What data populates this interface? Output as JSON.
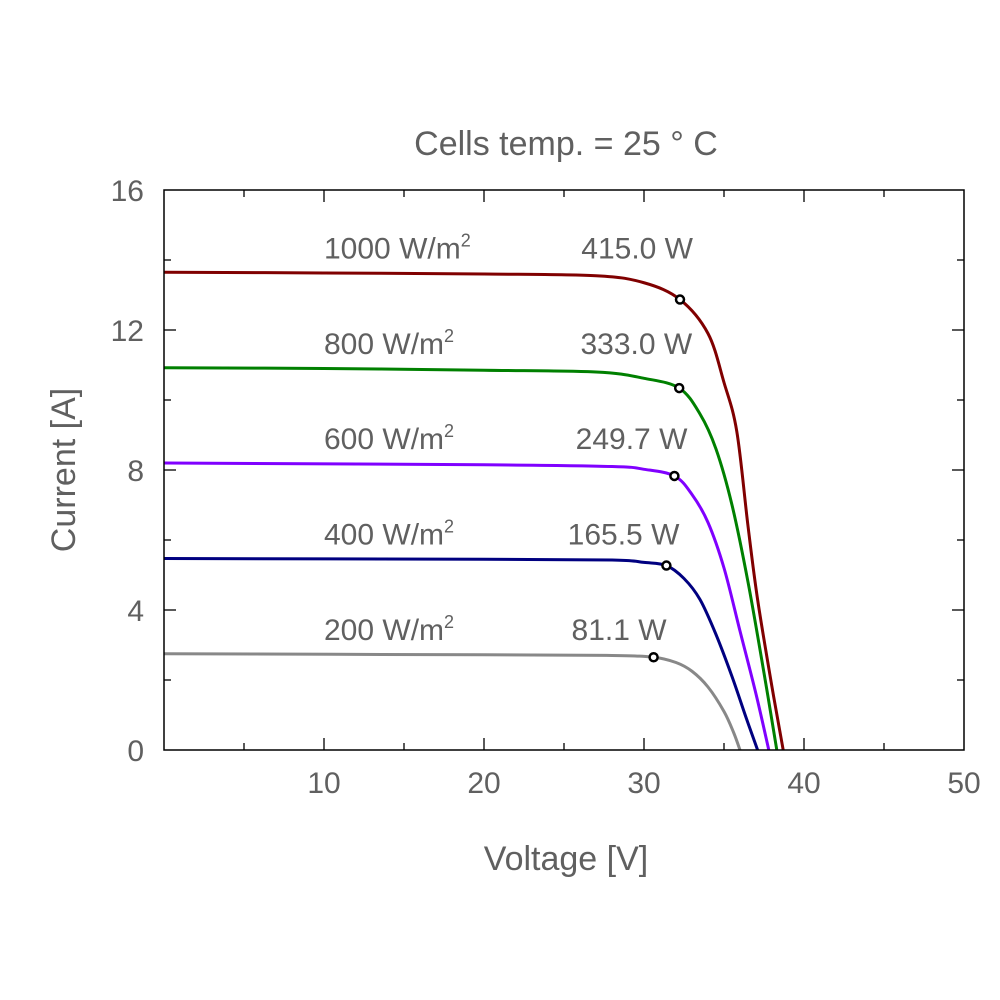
{
  "chart_data": {
    "type": "line",
    "title": "Cells temp. = 25 ° C",
    "xlabel": "Voltage [V]",
    "ylabel": "Current [A]",
    "xlim": [
      0,
      50
    ],
    "ylim": [
      0,
      16
    ],
    "xticks": [
      10,
      20,
      30,
      40,
      50
    ],
    "yticks": [
      0,
      4,
      8,
      12,
      16
    ],
    "grid": false,
    "legend": "inline labels above each curve",
    "series": [
      {
        "name": "1000 W/m²",
        "irradiance": "1000 W/m",
        "power": "415.0 W",
        "color": "#800000",
        "mpp": [
          32.25,
          12.87
        ],
        "points": [
          [
            0,
            13.65
          ],
          [
            10,
            13.63
          ],
          [
            20,
            13.6
          ],
          [
            27,
            13.55
          ],
          [
            30,
            13.35
          ],
          [
            32.25,
            12.87
          ],
          [
            34,
            11.9
          ],
          [
            35,
            10.5
          ],
          [
            35.8,
            9.1
          ],
          [
            36.5,
            6.4
          ],
          [
            37.1,
            4.3
          ],
          [
            38.0,
            1.8
          ],
          [
            38.7,
            0
          ]
        ]
      },
      {
        "name": "800 W/m²",
        "irradiance": "800 W/m",
        "power": "333.0 W",
        "color": "#008000",
        "mpp": [
          32.2,
          10.34
        ],
        "points": [
          [
            0,
            10.92
          ],
          [
            10,
            10.9
          ],
          [
            20,
            10.85
          ],
          [
            27,
            10.8
          ],
          [
            30,
            10.62
          ],
          [
            32.2,
            10.34
          ],
          [
            33.5,
            9.6
          ],
          [
            34.5,
            8.6
          ],
          [
            35.5,
            7.0
          ],
          [
            36.5,
            4.8
          ],
          [
            37.5,
            2.2
          ],
          [
            38.3,
            0
          ]
        ]
      },
      {
        "name": "600 W/m²",
        "irradiance": "600 W/m",
        "power": "249.7 W",
        "color": "#8000ff",
        "mpp": [
          31.9,
          7.83
        ],
        "points": [
          [
            0,
            8.2
          ],
          [
            20,
            8.15
          ],
          [
            28,
            8.1
          ],
          [
            30,
            8.02
          ],
          [
            31.9,
            7.83
          ],
          [
            33,
            7.3
          ],
          [
            34,
            6.5
          ],
          [
            35,
            5.2
          ],
          [
            36,
            3.4
          ],
          [
            37,
            1.6
          ],
          [
            37.8,
            0
          ]
        ]
      },
      {
        "name": "400 W/m²",
        "irradiance": "400 W/m",
        "power": "165.5 W",
        "color": "#000080",
        "mpp": [
          31.4,
          5.27
        ],
        "points": [
          [
            0,
            5.47
          ],
          [
            20,
            5.45
          ],
          [
            28,
            5.43
          ],
          [
            30,
            5.36
          ],
          [
            31.4,
            5.27
          ],
          [
            32.5,
            4.9
          ],
          [
            33.5,
            4.3
          ],
          [
            34.5,
            3.3
          ],
          [
            35.5,
            2.1
          ],
          [
            36.4,
            0.9
          ],
          [
            37.1,
            0
          ]
        ]
      },
      {
        "name": "200 W/m²",
        "irradiance": "200 W/m",
        "power": "81.1 W",
        "color": "#888888",
        "mpp": [
          30.6,
          2.65
        ],
        "points": [
          [
            0,
            2.75
          ],
          [
            20,
            2.72
          ],
          [
            28,
            2.7
          ],
          [
            30.6,
            2.65
          ],
          [
            32,
            2.5
          ],
          [
            33,
            2.25
          ],
          [
            34,
            1.8
          ],
          [
            35,
            1.1
          ],
          [
            35.6,
            0.5
          ],
          [
            36,
            0
          ]
        ]
      }
    ],
    "superscript": "2"
  }
}
